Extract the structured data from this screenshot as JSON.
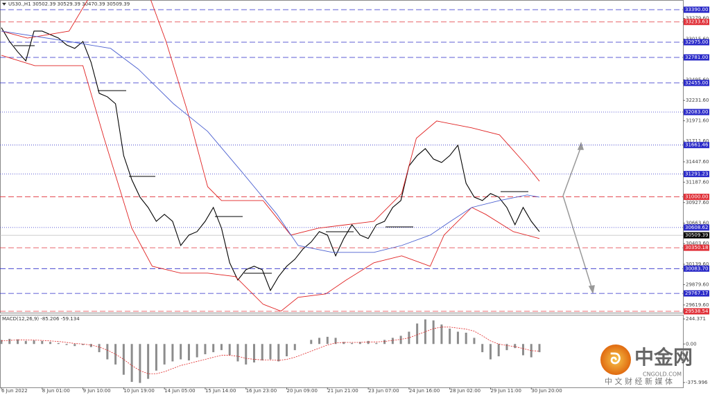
{
  "chart_data": [
    {
      "type": "line",
      "title": "US30.,H1  30502.39 30529.39 30470.39 30509.39",
      "categories": [
        "6 Jun 2022",
        null,
        null,
        null,
        null,
        "8 Jun 01:00",
        null,
        null,
        null,
        null,
        "9 Jun 10:00",
        null,
        null,
        null,
        null,
        "10 Jun 19:00",
        null,
        null,
        null,
        null,
        "14 Jun 05:00",
        null,
        null,
        null,
        null,
        "15 Jun 14:00",
        null,
        null,
        null,
        null,
        "16 Jun 23:00",
        null,
        null,
        null,
        null,
        "20 Jun 09:00",
        null,
        null,
        null,
        null,
        "21 Jun 21:00",
        null,
        null,
        null,
        null,
        "23 Jun 07:00",
        null,
        null,
        null,
        null,
        "24 Jun 16:00",
        null,
        null,
        null,
        null,
        "28 Jun 02:00",
        null,
        null,
        null,
        null,
        "29 Jun 11:00",
        null,
        null,
        null,
        null,
        "30 Jun 20:00",
        null
      ],
      "series": [
        {
          "color": "#000000",
          "values": [
            33161,
            32984,
            32852,
            32737,
            33117,
            33117,
            33072,
            33028,
            32940,
            32896,
            32984,
            32719,
            32322,
            32278,
            32189,
            31527,
            31218,
            30997,
            30865,
            30688,
            30777,
            30688,
            30379,
            30512,
            30556,
            30688,
            30865,
            30600,
            30159,
            29938,
            30070,
            30114,
            30070,
            29805,
            29982,
            30114,
            30203,
            30335,
            30424,
            30556,
            30512,
            30247,
            30468,
            30644,
            30512,
            30468,
            30644,
            30688,
            30865,
            30953,
            31395,
            31527,
            31616,
            31483,
            31439,
            31527,
            31660,
            31174,
            30997,
            30953,
            31042,
            30997,
            30865,
            30644,
            30865,
            30688,
            30556
          ]
        },
        {
          "color": "#e02020",
          "x": [
            0,
            3.2,
            8.3,
            12.6,
            17.7,
            20.2,
            22.8,
            25.3,
            27,
            32.1,
            35.5,
            38.9,
            42.3,
            45.7,
            49.1,
            50.9,
            53.4,
            57.7,
            61.1,
            64.5,
            66
          ],
          "values": [
            33117,
            33028,
            33117,
            33867,
            33691,
            32984,
            32101,
            31130,
            30953,
            30953,
            30512,
            30600,
            30644,
            30688,
            31042,
            31748,
            31969,
            31881,
            31792,
            31395,
            31200
          ]
        },
        {
          "color": "#e02020",
          "x": [
            0,
            4.1,
            10,
            12.6,
            16,
            18.5,
            22,
            25.3,
            28.7,
            32.1,
            34.3,
            36.4,
            39.8,
            42.3,
            45.7,
            49.1,
            52.6,
            54.3,
            57.7,
            59.4,
            62.8,
            66
          ],
          "values": [
            32808,
            32675,
            32675,
            31748,
            30600,
            30114,
            30026,
            30026,
            29982,
            29629,
            29541,
            29717,
            29761,
            29938,
            30159,
            30247,
            30114,
            30512,
            30865,
            30777,
            30556,
            30468
          ]
        },
        {
          "color": "#4a5fd0",
          "x": [
            0,
            8.3,
            13.4,
            16.8,
            21.1,
            25.3,
            29.6,
            33.8,
            36.4,
            40.6,
            45.7,
            49.1,
            52.6,
            55.1,
            57.7,
            61.1,
            64.5,
            66
          ],
          "values": [
            33117,
            32984,
            32896,
            32631,
            32190,
            31836,
            31306,
            30777,
            30379,
            30291,
            30291,
            30379,
            30512,
            30688,
            30865,
            30953,
            31024,
            30997
          ]
        }
      ],
      "ylim": [
        29521,
        33514
      ],
      "yticks": [
        {
          "value": 33279.6,
          "label": "33279.60"
        },
        {
          "value": 33015.6,
          "label": "33015.60"
        },
        {
          "value": 32495.6,
          "label": "32495.60"
        },
        {
          "value": 32231.6,
          "label": "32231.60"
        },
        {
          "value": 31971.6,
          "label": "31971.60"
        },
        {
          "value": 31711.6,
          "label": "31711.60"
        },
        {
          "value": 31447.6,
          "label": "31447.60"
        },
        {
          "value": 31187.6,
          "label": "31187.60"
        },
        {
          "value": 30927.6,
          "label": "30927.60"
        },
        {
          "value": 30663.6,
          "label": "30663.60"
        },
        {
          "value": 30403.6,
          "label": "30403.60"
        },
        {
          "value": 30139.6,
          "label": "30139.60"
        },
        {
          "value": 29879.6,
          "label": "29879.60"
        },
        {
          "value": 29619.6,
          "label": "29619.60"
        }
      ],
      "levels": [
        {
          "value": 33390,
          "label": "33390.00",
          "color": "#2a2ac8",
          "style": "dashed"
        },
        {
          "value": 33233.63,
          "label": "33233.63",
          "color": "#e03038",
          "style": "dashed"
        },
        {
          "value": 32975,
          "label": "32975.00",
          "color": "#2a2ac8",
          "style": "dashed"
        },
        {
          "value": 32781,
          "label": "32781.00",
          "color": "#2a2ac8",
          "style": "dashed"
        },
        {
          "value": 32455,
          "label": "32455.00",
          "color": "#2a2ac8",
          "style": "dashed"
        },
        {
          "value": 32083,
          "label": "32083.00",
          "color": "#2a2ac8",
          "style": "dotted"
        },
        {
          "value": 31661.46,
          "label": "31661.46",
          "color": "#2a2ac8",
          "style": "dotted"
        },
        {
          "value": 31291.23,
          "label": "31291.23",
          "color": "#2a2ac8",
          "style": "dotted"
        },
        {
          "value": 31000,
          "label": "31000.00",
          "color": "#e03038",
          "style": "dashed"
        },
        {
          "value": 30608.62,
          "label": "30608.62",
          "color": "#2a2ac8",
          "style": "dotted"
        },
        {
          "value": 30509.39,
          "label": "30509.39",
          "color": "#000000",
          "style": "solid"
        },
        {
          "value": 30350.18,
          "label": "30350.18",
          "color": "#e03038",
          "style": "dashed"
        },
        {
          "value": 30083.7,
          "label": "30083.70",
          "color": "#2a2ac8",
          "style": "dashed"
        },
        {
          "value": 29767.17,
          "label": "29767.17",
          "color": "#2a2ac8",
          "style": "dashed"
        },
        {
          "value": 29538.54,
          "label": "29538.54",
          "color": "#e03038",
          "style": "dashed"
        }
      ]
    },
    {
      "type": "bar",
      "title": "MACD(12,26,9) -85.206 -59.134",
      "series": [
        {
          "type": "bar",
          "color": "#8c8c8c",
          "values": [
            40,
            50,
            45,
            30,
            35,
            30,
            20,
            10,
            -10,
            -20,
            -10,
            -30,
            -80,
            -150,
            -200,
            -300,
            -370,
            -380,
            -340,
            -260,
            -200,
            -170,
            -150,
            -160,
            -130,
            -100,
            -80,
            -60,
            -110,
            -170,
            -200,
            -180,
            -160,
            -150,
            -170,
            -120,
            -60,
            0,
            40,
            60,
            70,
            60,
            20,
            10,
            20,
            30,
            10,
            40,
            60,
            80,
            120,
            200,
            240,
            230,
            190,
            150,
            120,
            110,
            60,
            -80,
            -150,
            -120,
            -60,
            -40,
            -110,
            -130,
            -80
          ]
        },
        {
          "type": "line",
          "color": "#e02020",
          "values": [
            30,
            35,
            40,
            40,
            38,
            35,
            30,
            25,
            15,
            5,
            0,
            -10,
            -30,
            -60,
            -100,
            -150,
            -210,
            -260,
            -290,
            -290,
            -270,
            -240,
            -210,
            -190,
            -170,
            -150,
            -130,
            -110,
            -110,
            -120,
            -140,
            -150,
            -155,
            -155,
            -160,
            -150,
            -130,
            -100,
            -70,
            -40,
            -10,
            10,
            15,
            15,
            15,
            20,
            20,
            25,
            35,
            45,
            60,
            90,
            120,
            150,
            165,
            165,
            155,
            145,
            125,
            80,
            30,
            0,
            -15,
            -25,
            -45,
            -65,
            -70
          ]
        }
      ],
      "ylim": [
        -437,
        265
      ],
      "yticks": [
        244.371,
        {
          "value": 0,
          "label": "0.00"
        },
        -375.996
      ]
    }
  ],
  "watermark": {
    "brand": "中金网",
    "site": "CNGOLD.COM",
    "slogan": "中 文 财 经 新 媒 体"
  }
}
